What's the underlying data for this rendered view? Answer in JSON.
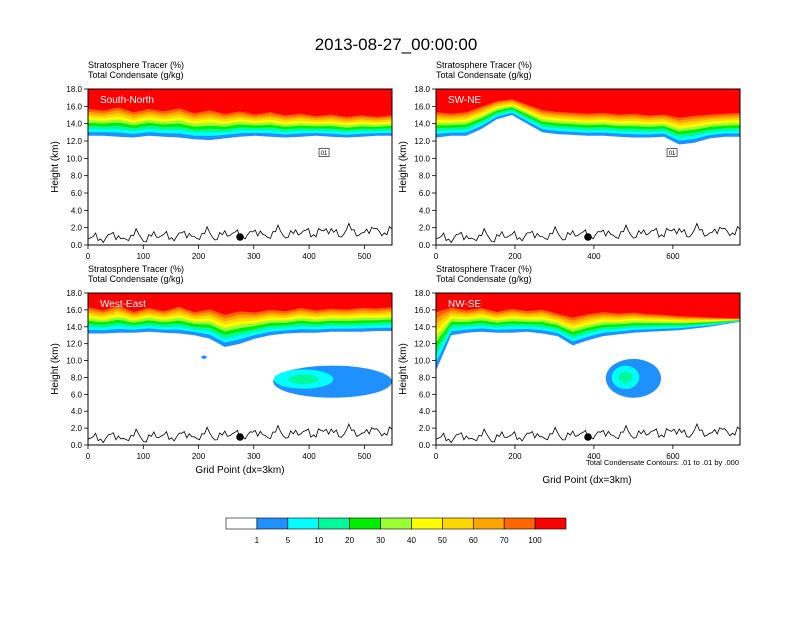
{
  "title": "2013-08-27_00:00:00",
  "x_axis_label": "Grid Point (dx=3km)",
  "contour_note": "Total Condensate Contours: .01 to .01 by .000",
  "colorbar": {
    "colors": [
      "#ffffff",
      "#1e90ff",
      "#00ffff",
      "#00fa9a",
      "#00ee00",
      "#9aff32",
      "#ffff00",
      "#ffd700",
      "#ffa500",
      "#ff6600",
      "#ff0000"
    ],
    "labels": [
      "1",
      "5",
      "10",
      "20",
      "30",
      "40",
      "50",
      "60",
      "70",
      "100"
    ]
  },
  "chart_data": [
    {
      "type": "contour",
      "panel_label": "South-North",
      "field_labels": [
        "Stratosphere Tracer   (%)",
        "Total Condensate   (g/kg)"
      ],
      "ylabel": "Height (km)",
      "xlim": [
        0,
        550
      ],
      "ylim": [
        0,
        18
      ],
      "xticks": [
        "0",
        "100",
        "200",
        "300",
        "400",
        "500"
      ],
      "yticks": [
        "0.0",
        "2.0",
        "4.0",
        "6.0",
        "8.0",
        "10.0",
        "12.0",
        "14.0",
        "16.0",
        "18.0"
      ],
      "tracer_base_km": [
        12.6,
        12.6,
        12.5,
        12.4,
        12.6,
        12.5,
        12.4,
        12.2,
        12.1,
        12.3,
        12.5,
        12.6,
        12.5,
        12.4,
        12.5,
        12.6,
        12.5,
        12.4,
        12.5,
        12.6,
        12.6
      ],
      "tracer_100_km": [
        16.0,
        15.8,
        16.2,
        15.6,
        16.0,
        15.7,
        16.1,
        15.5,
        15.9,
        15.4,
        15.7,
        15.3,
        15.6,
        15.2,
        15.4,
        15.1,
        15.3,
        15.0,
        15.2,
        15.0,
        15.2
      ],
      "cloud_blobs": [],
      "contour_label": "01",
      "marker_x": 275
    },
    {
      "type": "contour",
      "panel_label": "SW-NE",
      "field_labels": [
        "Stratosphere Tracer   (%)",
        "Total Condensate   (g/kg)"
      ],
      "ylabel": "Height (km)",
      "xlim": [
        0,
        770
      ],
      "ylim": [
        0,
        18
      ],
      "xticks": [
        "0",
        "200",
        "400",
        "600"
      ],
      "yticks": [
        "0.0",
        "2.0",
        "4.0",
        "6.0",
        "8.0",
        "10.0",
        "12.0",
        "14.0",
        "16.0",
        "18.0"
      ],
      "tracer_base_km": [
        12.4,
        12.6,
        12.6,
        13.4,
        14.5,
        15.0,
        14.0,
        13.0,
        12.8,
        12.7,
        12.6,
        12.6,
        12.5,
        12.4,
        12.4,
        12.5,
        11.6,
        11.8,
        12.3,
        12.5,
        12.5
      ],
      "tracer_100_km": [
        15.6,
        15.4,
        15.6,
        16.2,
        16.8,
        17.0,
        16.4,
        15.8,
        15.6,
        15.5,
        15.4,
        15.5,
        15.3,
        15.4,
        15.2,
        15.3,
        15.0,
        15.2,
        15.3,
        15.4,
        15.5
      ],
      "cloud_blobs": [],
      "contour_label": "01",
      "marker_x": 385
    },
    {
      "type": "contour",
      "panel_label": "West-East",
      "field_labels": [
        "Stratosphere Tracer   (%)",
        "Total Condensate   (g/kg)"
      ],
      "ylabel": "Height (km)",
      "xlim": [
        0,
        550
      ],
      "ylim": [
        0,
        18
      ],
      "xticks": [
        "0",
        "100",
        "200",
        "300",
        "400",
        "500"
      ],
      "yticks": [
        "0.0",
        "2.0",
        "4.0",
        "6.0",
        "8.0",
        "10.0",
        "12.0",
        "14.0",
        "16.0",
        "18.0"
      ],
      "tracer_base_km": [
        13.2,
        13.2,
        13.3,
        13.3,
        13.4,
        13.3,
        13.2,
        13.0,
        12.6,
        11.6,
        12.0,
        12.6,
        13.0,
        13.2,
        13.3,
        13.3,
        13.4,
        13.4,
        13.4,
        13.5,
        13.5
      ],
      "tracer_100_km": [
        16.6,
        16.2,
        16.8,
        16.0,
        16.5,
        16.1,
        16.7,
        16.0,
        16.4,
        15.8,
        16.2,
        16.0,
        16.3,
        16.1,
        16.5,
        16.2,
        16.4,
        16.3,
        16.5,
        16.4,
        16.6
      ],
      "cloud_blobs": [
        {
          "x": [
            335,
            550
          ],
          "y": [
            5.6,
            9.4
          ],
          "core_x": 390,
          "core_y": 7.8
        },
        {
          "x": [
            205,
            215
          ],
          "y": [
            10.2,
            10.6
          ]
        }
      ],
      "contour_label": "",
      "marker_x": 275
    },
    {
      "type": "contour",
      "panel_label": "NW-SE",
      "field_labels": [
        "Stratosphere Tracer   (%)",
        "Total Condensate   (g/kg)"
      ],
      "ylabel": "Height (km)",
      "xlim": [
        0,
        770
      ],
      "ylim": [
        0,
        18
      ],
      "xticks": [
        "0",
        "200",
        "400",
        "600"
      ],
      "yticks": [
        "0.0",
        "2.0",
        "4.0",
        "6.0",
        "8.0",
        "10.0",
        "12.0",
        "14.0",
        "16.0",
        "18.0"
      ],
      "tracer_base_km": [
        8.8,
        13.0,
        13.3,
        13.4,
        13.3,
        13.3,
        13.4,
        13.2,
        12.9,
        11.8,
        12.4,
        12.9,
        13.1,
        13.3,
        13.4,
        13.5,
        13.6,
        13.8,
        14.0,
        14.3,
        14.6
      ],
      "tracer_100_km": [
        16.4,
        16.6,
        16.2,
        16.5,
        16.0,
        16.4,
        16.1,
        16.3,
        15.8,
        15.4,
        15.8,
        16.0,
        15.8,
        15.9,
        15.7,
        15.6,
        15.4,
        15.3,
        15.2,
        15.1,
        15.0
      ],
      "cloud_blobs": [
        {
          "x": [
            430,
            570
          ],
          "y": [
            5.6,
            10.2
          ],
          "core_x": 480,
          "core_y": 8.0
        }
      ],
      "contour_label": "",
      "marker_x": 385
    }
  ]
}
